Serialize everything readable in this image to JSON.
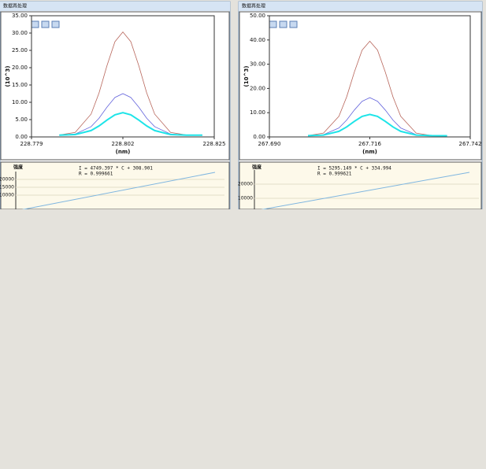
{
  "panels": [
    {
      "title": "数据再处理",
      "spectrum": {
        "type": "line",
        "x_label": "(nm)",
        "y_label": "(10^3)",
        "x": [
          228.786,
          228.79,
          228.794,
          228.796,
          228.798,
          228.8,
          228.802,
          228.804,
          228.806,
          228.808,
          228.81,
          228.814,
          228.818,
          228.822
        ],
        "xlim": [
          228.779,
          228.825
        ],
        "xticks": [
          228.779,
          228.802,
          228.825
        ],
        "ylim": [
          0,
          35
        ],
        "yticks": [
          {
            "value": 0,
            "label": "0.00"
          },
          {
            "value": 5,
            "label": "5.00"
          },
          {
            "value": 10,
            "label": "10.00"
          },
          {
            "value": 15,
            "label": "15.00"
          },
          {
            "value": 20,
            "label": "20.00"
          },
          {
            "value": 25,
            "label": "25.00"
          },
          {
            "value": 30,
            "label": "30.00"
          },
          {
            "value": 35,
            "label": "35.00"
          }
        ],
        "series": [
          {
            "color": "#b8675c",
            "values": [
              0.55,
              1.3,
              6.6,
              12.7,
              20.6,
              27.5,
              30.3,
              27.5,
              20.6,
              12.7,
              6.6,
              1.3,
              0.55,
              0.5
            ]
          },
          {
            "color": "#6464dc",
            "values": [
              0.52,
              0.84,
              2.97,
              5.4,
              8.6,
              11.4,
              12.5,
              11.4,
              8.6,
              5.4,
              2.97,
              0.84,
              0.52,
              0.5
            ]
          },
          {
            "color": "#1ee4e8",
            "values": [
              0.51,
              0.68,
              1.84,
              3.17,
              4.88,
              6.39,
              7.0,
              6.39,
              4.88,
              3.17,
              1.84,
              0.68,
              0.51,
              0.5
            ]
          }
        ]
      },
      "calibration": {
        "y_label": "强度",
        "equation": "I = 4749.397 * C + 308.901",
        "r": "R = 0.999661",
        "ylim": [
          0,
          25000
        ],
        "yticks": [
          10000,
          15000,
          20000
        ]
      }
    },
    {
      "title": "数据再处理",
      "spectrum": {
        "type": "line",
        "x_label": "(nm)",
        "y_label": "(10^3)",
        "x": [
          267.7,
          267.704,
          267.708,
          267.71,
          267.712,
          267.714,
          267.716,
          267.718,
          267.72,
          267.722,
          267.724,
          267.728,
          267.732,
          267.736
        ],
        "xlim": [
          267.69,
          267.742
        ],
        "xticks": [
          {
            "value": 267.69,
            "label": "267.690"
          },
          267.716,
          267.742
        ],
        "ylim": [
          0,
          50
        ],
        "yticks": [
          {
            "value": 0,
            "label": "0.00"
          },
          {
            "value": 10,
            "label": "10.00"
          },
          {
            "value": 20,
            "label": "20.00"
          },
          {
            "value": 30,
            "label": "30.00"
          },
          {
            "value": 40,
            "label": "40.00"
          },
          {
            "value": 50,
            "label": "50.00"
          }
        ],
        "series": [
          {
            "color": "#b8675c",
            "values": [
              0.57,
              1.59,
              8.5,
              16.5,
              26.8,
              35.8,
              39.5,
              35.8,
              26.8,
              16.5,
              8.5,
              1.59,
              0.57,
              0.5
            ]
          },
          {
            "color": "#6464dc",
            "values": [
              0.53,
              0.94,
              3.7,
              6.95,
              11.1,
              14.7,
              16.2,
              14.7,
              11.1,
              6.95,
              3.7,
              0.94,
              0.53,
              0.5
            ]
          },
          {
            "color": "#1ee4e8",
            "values": [
              0.52,
              0.75,
              2.31,
              4.12,
              6.43,
              8.47,
              9.3,
              8.47,
              6.43,
              4.12,
              2.31,
              0.75,
              0.52,
              0.5
            ]
          }
        ]
      },
      "calibration": {
        "y_label": "强度",
        "equation": "I = 5295.149 * C + 334.994",
        "r": "R = 0.999621",
        "ylim": [
          0,
          30000
        ],
        "yticks": [
          10000,
          20000
        ]
      }
    }
  ]
}
